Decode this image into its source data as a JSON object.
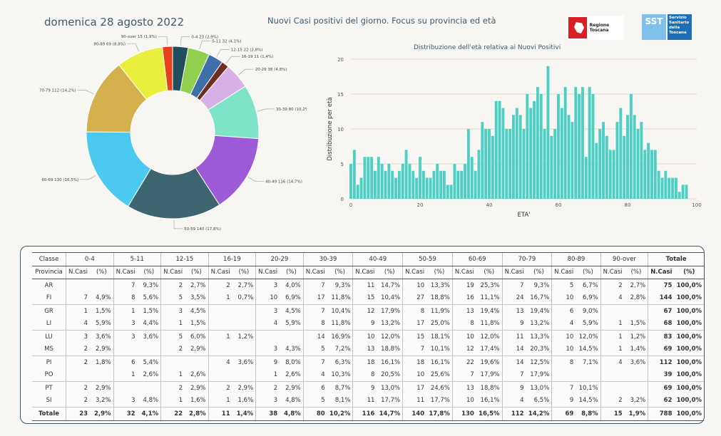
{
  "header": {
    "date": "domenica 28 agosto 2022",
    "title": "Nuovi Casi positivi del giorno. Focus su provincia ed età",
    "logo1_text": "Regione Toscana",
    "logo2_abbr": "SST",
    "logo2_text": "Servizio Sanitario della Toscana"
  },
  "chart_data": [
    {
      "type": "pie",
      "donut": true,
      "slices": [
        {
          "label": "0-4 23 (2,9%)",
          "value": 23,
          "color": "#1f4e5f"
        },
        {
          "label": "5-11 32 (4,1%)",
          "value": 32,
          "color": "#8fd14f"
        },
        {
          "label": "12-15 22 (2,8%)",
          "value": 22,
          "color": "#3f6fa8"
        },
        {
          "label": "16-19 11 (1,4%)",
          "value": 11,
          "color": "#6b2e1f"
        },
        {
          "label": "20-29 38 (4,8%)",
          "value": 38,
          "color": "#d6b0e6"
        },
        {
          "label": "30-39 80 (10,2%)",
          "value": 80,
          "color": "#7fe3c8"
        },
        {
          "label": "40-49 116 (14,7%)",
          "value": 116,
          "color": "#9c5ad8"
        },
        {
          "label": "50-59 140 (17,8%)",
          "value": 140,
          "color": "#3d6570"
        },
        {
          "label": "60-69 130 (16,5%)",
          "value": 130,
          "color": "#4cc9f0"
        },
        {
          "label": "70-79 112 (14,2%)",
          "value": 112,
          "color": "#d4b04c"
        },
        {
          "label": "80-89 69 (8,8%)",
          "value": 69,
          "color": "#e8ef3c"
        },
        {
          "label": "90-over 15 (1,9%)",
          "value": 15,
          "color": "#e8401c"
        }
      ]
    },
    {
      "type": "bar",
      "title": "Distribuzione dell'età relativa ai Nuovi Positivi",
      "xlabel": "ETA'",
      "ylabel": "Distribuzione per età",
      "xlim": [
        0,
        100
      ],
      "ylim": [
        0,
        20
      ],
      "xticks": [
        0,
        20,
        40,
        60,
        80,
        100
      ],
      "yticks": [
        0,
        5,
        10,
        15,
        20
      ],
      "color": "#4dd0c4",
      "grid": true,
      "x": [
        0,
        1,
        2,
        3,
        4,
        5,
        6,
        7,
        8,
        9,
        10,
        11,
        12,
        13,
        14,
        15,
        16,
        17,
        18,
        19,
        20,
        21,
        22,
        23,
        24,
        25,
        26,
        27,
        28,
        29,
        30,
        31,
        32,
        33,
        34,
        35,
        36,
        37,
        38,
        39,
        40,
        41,
        42,
        43,
        44,
        45,
        46,
        47,
        48,
        49,
        50,
        51,
        52,
        53,
        54,
        55,
        56,
        57,
        58,
        59,
        60,
        61,
        62,
        63,
        64,
        65,
        66,
        67,
        68,
        69,
        70,
        71,
        72,
        73,
        74,
        75,
        76,
        77,
        78,
        79,
        80,
        81,
        82,
        83,
        84,
        85,
        86,
        87,
        88,
        89,
        90,
        91,
        92,
        93,
        94,
        95,
        96,
        97
      ],
      "values": [
        5,
        7,
        2,
        3,
        6,
        6,
        6,
        4,
        6,
        5,
        4,
        5,
        4,
        3,
        4,
        5,
        7,
        5,
        4,
        3,
        6,
        4,
        3,
        3,
        4,
        5,
        4,
        4,
        2,
        2,
        5,
        4,
        4,
        5,
        10,
        6,
        4,
        7,
        11,
        10,
        10,
        9,
        14,
        14,
        13,
        10,
        10,
        12,
        13,
        12,
        10,
        15,
        13,
        14,
        16,
        15,
        10,
        19,
        9,
        10,
        15,
        13,
        16,
        12,
        11,
        16,
        15,
        16,
        6,
        16,
        15,
        8,
        10,
        11,
        9,
        7,
        7,
        11,
        13,
        9,
        12,
        15,
        12,
        10,
        11,
        7,
        8,
        7,
        7,
        4,
        3,
        4,
        3,
        3,
        3,
        1,
        2,
        2
      ]
    },
    {
      "type": "table",
      "age_classes": [
        "0-4",
        "5-11",
        "12-15",
        "16-19",
        "20-29",
        "30-39",
        "40-49",
        "50-59",
        "60-69",
        "70-79",
        "80-89",
        "90-over"
      ],
      "header_classe": "Classe",
      "header_totale": "Totale",
      "header_provincia": "Provincia",
      "sub_ncasi": "N.Casi",
      "sub_pct": "(%)",
      "rows": [
        {
          "prov": "AR",
          "cells": [
            [
              "",
              ""
            ],
            [
              "7",
              "9,3%"
            ],
            [
              "2",
              "2,7%"
            ],
            [
              "2",
              "2,7%"
            ],
            [
              "3",
              "4,0%"
            ],
            [
              "7",
              "9,3%"
            ],
            [
              "11",
              "14,7%"
            ],
            [
              "10",
              "13,3%"
            ],
            [
              "19",
              "25,3%"
            ],
            [
              "7",
              "9,3%"
            ],
            [
              "5",
              "6,7%"
            ],
            [
              "2",
              "2,7%"
            ]
          ],
          "tot": [
            "75",
            "100,0%"
          ]
        },
        {
          "prov": "FI",
          "cells": [
            [
              "7",
              "4,9%"
            ],
            [
              "8",
              "5,6%"
            ],
            [
              "5",
              "3,5%"
            ],
            [
              "1",
              "0,7%"
            ],
            [
              "10",
              "6,9%"
            ],
            [
              "17",
              "11,8%"
            ],
            [
              "15",
              "10,4%"
            ],
            [
              "27",
              "18,8%"
            ],
            [
              "16",
              "11,1%"
            ],
            [
              "24",
              "16,7%"
            ],
            [
              "10",
              "6,9%"
            ],
            [
              "4",
              "2,8%"
            ]
          ],
          "tot": [
            "144",
            "100,0%"
          ]
        },
        {
          "prov": "GR",
          "cells": [
            [
              "1",
              "1,5%"
            ],
            [
              "1",
              "1,5%"
            ],
            [
              "3",
              "4,5%"
            ],
            [
              "",
              ""
            ],
            [
              "3",
              "4,5%"
            ],
            [
              "7",
              "10,4%"
            ],
            [
              "12",
              "17,9%"
            ],
            [
              "8",
              "11,9%"
            ],
            [
              "13",
              "19,4%"
            ],
            [
              "13",
              "19,4%"
            ],
            [
              "6",
              "9,0%"
            ],
            [
              "",
              ""
            ]
          ],
          "tot": [
            "67",
            "100,0%"
          ]
        },
        {
          "prov": "LI",
          "cells": [
            [
              "4",
              "5,9%"
            ],
            [
              "3",
              "4,4%"
            ],
            [
              "1",
              "1,5%"
            ],
            [
              "",
              ""
            ],
            [
              "4",
              "5,9%"
            ],
            [
              "8",
              "11,8%"
            ],
            [
              "9",
              "13,2%"
            ],
            [
              "17",
              "25,0%"
            ],
            [
              "8",
              "11,8%"
            ],
            [
              "9",
              "13,2%"
            ],
            [
              "4",
              "5,9%"
            ],
            [
              "1",
              "1,5%"
            ]
          ],
          "tot": [
            "68",
            "100,0%"
          ]
        },
        {
          "prov": "LU",
          "cells": [
            [
              "3",
              "3,6%"
            ],
            [
              "3",
              "3,6%"
            ],
            [
              "5",
              "6,0%"
            ],
            [
              "1",
              "1,2%"
            ],
            [
              "",
              ""
            ],
            [
              "14",
              "16,9%"
            ],
            [
              "10",
              "12,0%"
            ],
            [
              "15",
              "18,1%"
            ],
            [
              "10",
              "12,0%"
            ],
            [
              "11",
              "13,3%"
            ],
            [
              "10",
              "12,0%"
            ],
            [
              "1",
              "1,2%"
            ]
          ],
          "tot": [
            "83",
            "100,0%"
          ]
        },
        {
          "prov": "MS",
          "cells": [
            [
              "2",
              "2,9%"
            ],
            [
              "",
              ""
            ],
            [
              "2",
              "2,9%"
            ],
            [
              "",
              ""
            ],
            [
              "3",
              "4,3%"
            ],
            [
              "5",
              "7,2%"
            ],
            [
              "13",
              "18,8%"
            ],
            [
              "7",
              "10,1%"
            ],
            [
              "12",
              "17,4%"
            ],
            [
              "14",
              "20,3%"
            ],
            [
              "10",
              "14,5%"
            ],
            [
              "1",
              "1,4%"
            ]
          ],
          "tot": [
            "69",
            "100,0%"
          ]
        },
        {
          "prov": "PI",
          "cells": [
            [
              "2",
              "1,8%"
            ],
            [
              "6",
              "5,4%"
            ],
            [
              "",
              ""
            ],
            [
              "4",
              "3,6%"
            ],
            [
              "9",
              "8,0%"
            ],
            [
              "7",
              "6,3%"
            ],
            [
              "18",
              "16,1%"
            ],
            [
              "18",
              "16,1%"
            ],
            [
              "22",
              "19,6%"
            ],
            [
              "14",
              "12,5%"
            ],
            [
              "8",
              "7,1%"
            ],
            [
              "4",
              "3,6%"
            ]
          ],
          "tot": [
            "112",
            "100,0%"
          ]
        },
        {
          "prov": "PO",
          "cells": [
            [
              "",
              ""
            ],
            [
              "1",
              "2,6%"
            ],
            [
              "1",
              "2,6%"
            ],
            [
              "",
              ""
            ],
            [
              "1",
              "2,6%"
            ],
            [
              "4",
              "10,3%"
            ],
            [
              "8",
              "20,5%"
            ],
            [
              "10",
              "25,6%"
            ],
            [
              "7",
              "17,9%"
            ],
            [
              "7",
              "17,9%"
            ],
            [
              "",
              ""
            ],
            [
              "",
              ""
            ]
          ],
          "tot": [
            "39",
            "100,0%"
          ]
        },
        {
          "prov": "PT",
          "cells": [
            [
              "2",
              "2,9%"
            ],
            [
              "",
              ""
            ],
            [
              "2",
              "2,9%"
            ],
            [
              "2",
              "2,9%"
            ],
            [
              "2",
              "2,9%"
            ],
            [
              "6",
              "8,7%"
            ],
            [
              "9",
              "13,0%"
            ],
            [
              "17",
              "24,6%"
            ],
            [
              "13",
              "18,8%"
            ],
            [
              "9",
              "13,0%"
            ],
            [
              "7",
              "10,1%"
            ],
            [
              "",
              ""
            ]
          ],
          "tot": [
            "69",
            "100,0%"
          ]
        },
        {
          "prov": "SI",
          "cells": [
            [
              "2",
              "3,2%"
            ],
            [
              "3",
              "4,8%"
            ],
            [
              "1",
              "1,6%"
            ],
            [
              "1",
              "1,6%"
            ],
            [
              "3",
              "4,8%"
            ],
            [
              "5",
              "8,1%"
            ],
            [
              "11",
              "17,7%"
            ],
            [
              "11",
              "17,7%"
            ],
            [
              "10",
              "16,1%"
            ],
            [
              "4",
              "6,5%"
            ],
            [
              "9",
              "14,5%"
            ],
            [
              "2",
              "3,2%"
            ]
          ],
          "tot": [
            "62",
            "100,0%"
          ]
        }
      ],
      "total_row": {
        "prov": "Totale",
        "cells": [
          [
            "23",
            "2,9%"
          ],
          [
            "32",
            "4,1%"
          ],
          [
            "22",
            "2,8%"
          ],
          [
            "11",
            "1,4%"
          ],
          [
            "38",
            "4,8%"
          ],
          [
            "80",
            "10,2%"
          ],
          [
            "116",
            "14,7%"
          ],
          [
            "140",
            "17,8%"
          ],
          [
            "130",
            "16,5%"
          ],
          [
            "112",
            "14,2%"
          ],
          [
            "69",
            "8,8%"
          ],
          [
            "15",
            "1,9%"
          ]
        ],
        "tot": [
          "788",
          "100,0%"
        ]
      }
    }
  ]
}
